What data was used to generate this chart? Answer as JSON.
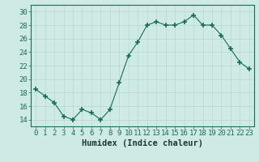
{
  "x": [
    0,
    1,
    2,
    3,
    4,
    5,
    6,
    7,
    8,
    9,
    10,
    11,
    12,
    13,
    14,
    15,
    16,
    17,
    18,
    19,
    20,
    21,
    22,
    23
  ],
  "y": [
    18.5,
    17.5,
    16.5,
    14.5,
    14.0,
    15.5,
    15.0,
    14.0,
    15.5,
    19.5,
    23.5,
    25.5,
    28.0,
    28.5,
    28.0,
    28.0,
    28.5,
    29.5,
    28.0,
    28.0,
    26.5,
    24.5,
    22.5,
    21.5
  ],
  "line_color": "#1a6b5a",
  "marker": "+",
  "marker_size": 4,
  "marker_lw": 1.2,
  "bg_color": "#ceeae4",
  "grid_color": "#b8d8d0",
  "xlabel": "Humidex (Indice chaleur)",
  "xlim": [
    -0.5,
    23.5
  ],
  "ylim": [
    13,
    31
  ],
  "yticks": [
    14,
    16,
    18,
    20,
    22,
    24,
    26,
    28,
    30
  ],
  "xtick_labels": [
    "0",
    "1",
    "2",
    "3",
    "4",
    "5",
    "6",
    "7",
    "8",
    "9",
    "10",
    "11",
    "12",
    "13",
    "14",
    "15",
    "16",
    "17",
    "18",
    "19",
    "20",
    "21",
    "22",
    "23"
  ],
  "tick_fontsize": 6.5,
  "xlabel_fontsize": 7.5
}
